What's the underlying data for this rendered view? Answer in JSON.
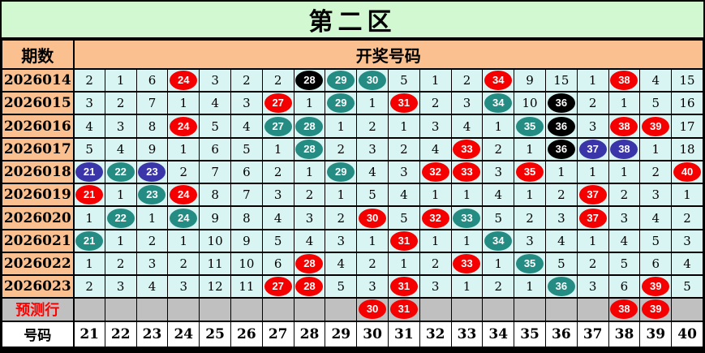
{
  "colors": {
    "red": "#f50000",
    "teal": "#258c84",
    "black": "#000000",
    "blue": "#3a35a8",
    "title_bg": "#d2f8d2",
    "header_bg": "#fac090",
    "cell_bg": "#d8f5f3",
    "prediction_bg": "#c0c0c0",
    "prediction_text": "#ff0000"
  },
  "chart_data": {
    "type": "table",
    "title": "第二区",
    "row_header_label": "期数",
    "column_group_label": "开奖号码",
    "columns": [
      "21",
      "22",
      "23",
      "24",
      "25",
      "26",
      "27",
      "28",
      "29",
      "30",
      "31",
      "32",
      "33",
      "34",
      "35",
      "36",
      "37",
      "38",
      "39",
      "40"
    ],
    "rows": [
      {
        "period": "2026014",
        "cells": [
          "2",
          "1",
          "6",
          "24:red",
          "3",
          "2",
          "2",
          "28:black",
          "29:teal",
          "30:teal",
          "5",
          "1",
          "2",
          "34:red",
          "9",
          "15",
          "1",
          "38:red",
          "4",
          "15"
        ]
      },
      {
        "period": "2026015",
        "cells": [
          "3",
          "2",
          "7",
          "1",
          "4",
          "3",
          "27:red",
          "1",
          "29:teal",
          "1",
          "31:red",
          "2",
          "3",
          "34:teal",
          "10",
          "36:black",
          "2",
          "1",
          "5",
          "16"
        ]
      },
      {
        "period": "2026016",
        "cells": [
          "4",
          "3",
          "8",
          "24:red",
          "5",
          "4",
          "27:teal",
          "28:teal",
          "1",
          "2",
          "1",
          "3",
          "4",
          "1",
          "35:teal",
          "36:black",
          "3",
          "38:red",
          "39:red",
          "17"
        ]
      },
      {
        "period": "2026017",
        "cells": [
          "5",
          "4",
          "9",
          "1",
          "6",
          "5",
          "1",
          "28:teal",
          "2",
          "3",
          "2",
          "4",
          "33:red",
          "2",
          "1",
          "36:black",
          "37:blue",
          "38:blue",
          "1",
          "18"
        ]
      },
      {
        "period": "2026018",
        "cells": [
          "21:blue",
          "22:teal",
          "23:blue",
          "2",
          "7",
          "6",
          "2",
          "1",
          "29:teal",
          "4",
          "3",
          "32:red",
          "33:red",
          "3",
          "35:red",
          "1",
          "1",
          "1",
          "2",
          "40:red"
        ]
      },
      {
        "period": "2026019",
        "cells": [
          "21:red",
          "1",
          "23:teal",
          "24:red",
          "8",
          "7",
          "3",
          "2",
          "1",
          "5",
          "4",
          "1",
          "1",
          "4",
          "1",
          "2",
          "37:red",
          "2",
          "3",
          "1"
        ]
      },
      {
        "period": "2026020",
        "cells": [
          "1",
          "22:teal",
          "1",
          "24:teal",
          "9",
          "8",
          "4",
          "3",
          "2",
          "30:red",
          "5",
          "32:red",
          "33:teal",
          "5",
          "2",
          "3",
          "37:red",
          "3",
          "4",
          "2"
        ]
      },
      {
        "period": "2026021",
        "cells": [
          "21:teal",
          "1",
          "2",
          "1",
          "10",
          "9",
          "5",
          "4",
          "3",
          "1",
          "31:red",
          "1",
          "1",
          "34:teal",
          "3",
          "4",
          "1",
          "4",
          "5",
          "3"
        ]
      },
      {
        "period": "2026022",
        "cells": [
          "1",
          "2",
          "3",
          "2",
          "11",
          "10",
          "6",
          "28:red",
          "4",
          "2",
          "1",
          "2",
          "33:red",
          "1",
          "35:teal",
          "5",
          "2",
          "5",
          "6",
          "4"
        ]
      },
      {
        "period": "2026023",
        "cells": [
          "2",
          "3",
          "4",
          "3",
          "12",
          "11",
          "27:red",
          "28:red",
          "5",
          "3",
          "31:red",
          "3",
          "1",
          "2",
          "1",
          "36:teal",
          "3",
          "6",
          "39:red",
          "5"
        ]
      }
    ],
    "prediction_row": {
      "label": "预测行",
      "cells": [
        "",
        "",
        "",
        "",
        "",
        "",
        "",
        "",
        "",
        "30:red",
        "31:red",
        "",
        "",
        "",
        "",
        "",
        "",
        "38:red",
        "39:red",
        ""
      ]
    },
    "footer_row": {
      "label": "号码",
      "cells": [
        "21",
        "22",
        "23",
        "24",
        "25",
        "26",
        "27",
        "28",
        "29",
        "30",
        "31",
        "32",
        "33",
        "34",
        "35",
        "36",
        "37",
        "38",
        "39",
        "40"
      ]
    }
  }
}
